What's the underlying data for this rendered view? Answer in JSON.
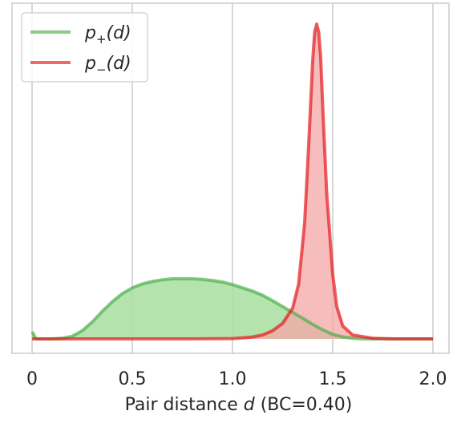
{
  "chart_data": {
    "type": "area",
    "xlabel_prefix": "Pair distance ",
    "xlabel_var": "d",
    "xlabel_suffix": " (BC=0.40)",
    "x_ticks": [
      0,
      0.5,
      1.0,
      1.5,
      2.0
    ],
    "x_tick_labels": [
      "0",
      "0.5",
      "1.0",
      "1.5",
      "2.0"
    ],
    "xlim": [
      -0.1,
      2.08
    ],
    "ylim": [
      0,
      1.0
    ],
    "y_axis_visible": false,
    "grid": "vertical",
    "legend_position": "top-left",
    "series": [
      {
        "name_base": "p",
        "name_sub": "+",
        "name_arg": "(d)",
        "color": "#4daf4a",
        "fill": "#a8dea0",
        "x": [
          0.0,
          0.02,
          0.05,
          0.1,
          0.15,
          0.2,
          0.25,
          0.3,
          0.35,
          0.4,
          0.45,
          0.5,
          0.55,
          0.6,
          0.65,
          0.7,
          0.75,
          0.8,
          0.85,
          0.9,
          0.95,
          1.0,
          1.05,
          1.1,
          1.15,
          1.2,
          1.25,
          1.3,
          1.35,
          1.4,
          1.45,
          1.5,
          1.55,
          1.6,
          1.65,
          1.7,
          1.8,
          1.9,
          2.0
        ],
        "y": [
          0.022,
          0.0,
          0.0,
          0.0,
          0.002,
          0.008,
          0.025,
          0.052,
          0.085,
          0.115,
          0.14,
          0.158,
          0.17,
          0.178,
          0.183,
          0.186,
          0.186,
          0.186,
          0.184,
          0.181,
          0.176,
          0.168,
          0.158,
          0.148,
          0.135,
          0.118,
          0.1,
          0.082,
          0.064,
          0.045,
          0.028,
          0.014,
          0.006,
          0.002,
          0.0,
          0.0,
          0.0,
          0.0,
          0.0
        ]
      },
      {
        "name_base": "p",
        "name_sub": "−",
        "name_arg": "(d)",
        "color": "#e41a1c",
        "fill": "#f4a6a6",
        "x": [
          0.0,
          0.2,
          0.4,
          0.6,
          0.8,
          1.0,
          1.05,
          1.1,
          1.15,
          1.2,
          1.25,
          1.3,
          1.33,
          1.36,
          1.38,
          1.4,
          1.41,
          1.42,
          1.43,
          1.44,
          1.45,
          1.47,
          1.5,
          1.52,
          1.55,
          1.6,
          1.7,
          1.8,
          2.0
        ],
        "y": [
          0.0,
          0.0,
          0.0,
          0.0,
          0.0,
          0.001,
          0.003,
          0.006,
          0.012,
          0.025,
          0.048,
          0.095,
          0.17,
          0.36,
          0.6,
          0.86,
          0.95,
          0.975,
          0.95,
          0.87,
          0.72,
          0.45,
          0.2,
          0.1,
          0.04,
          0.012,
          0.002,
          0.0,
          0.0
        ]
      }
    ]
  }
}
